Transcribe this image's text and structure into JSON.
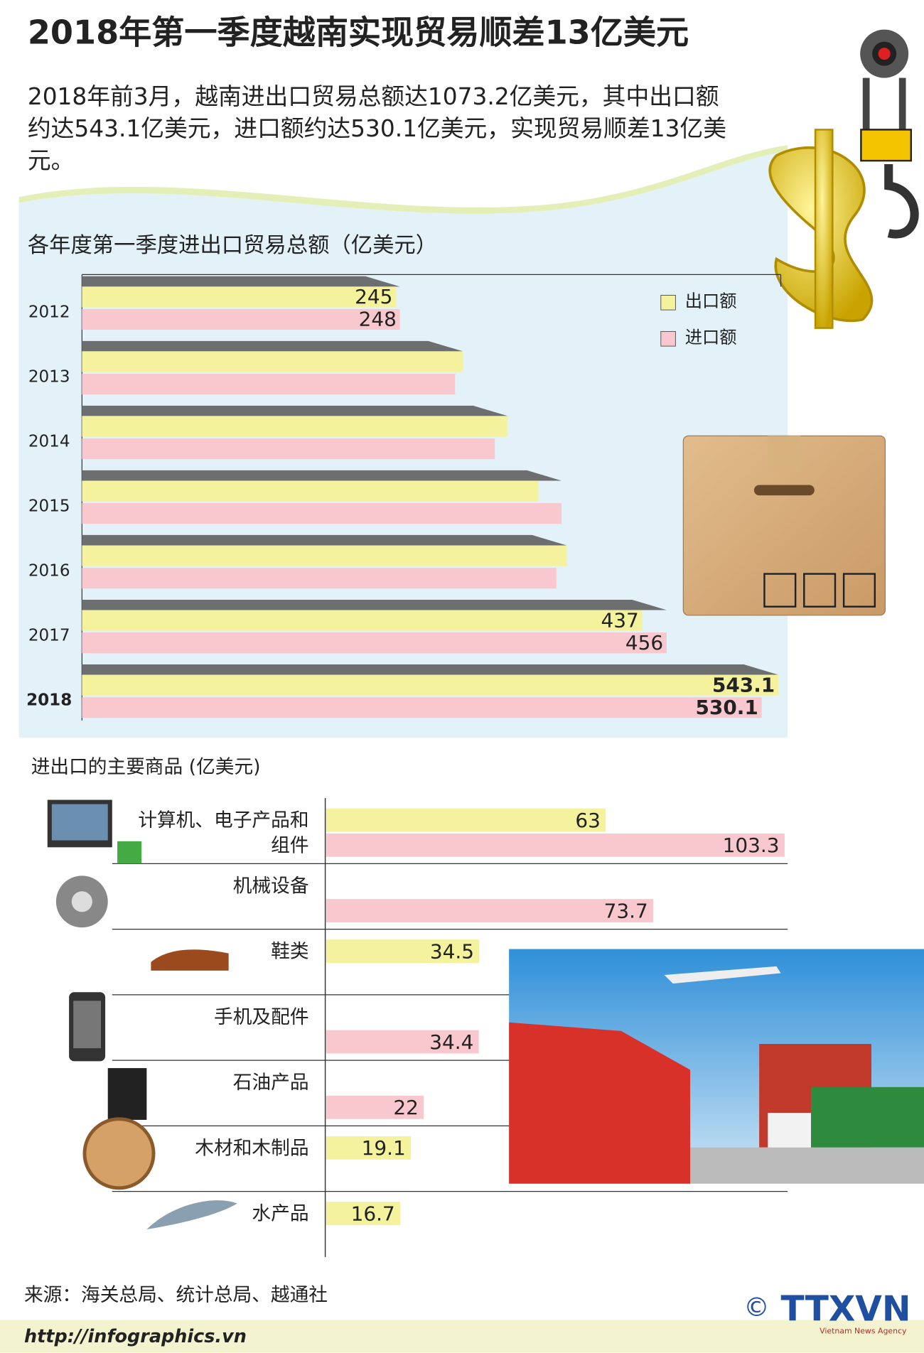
{
  "header": {
    "title": "2018年第一季度越南实现贸易顺差13亿美元",
    "intro": "2018年前3月，越南进出口贸易总额达1073.2亿美元，其中出口额约达543.1亿美元，进口额约达530.1亿美元，实现贸易顺差13亿美元。"
  },
  "chart_data": [
    {
      "type": "bar",
      "title": "各年度第一季度进出口贸易总额（亿美元）",
      "categories": [
        "2012",
        "2013",
        "2014",
        "2015",
        "2016",
        "2017",
        "2018"
      ],
      "series": [
        {
          "name": "出口额",
          "color": "#f4f29c",
          "values": [
            245,
            297,
            332,
            356,
            378,
            437,
            543.1
          ],
          "value_labels": [
            "245",
            null,
            null,
            null,
            null,
            "437",
            "543.1"
          ]
        },
        {
          "name": "进口额",
          "color": "#f8c8ce",
          "values": [
            248,
            291,
            322,
            374,
            370,
            456,
            530.1
          ],
          "value_labels": [
            "248",
            null,
            null,
            null,
            null,
            "456",
            "530.1"
          ]
        }
      ],
      "xlim": [
        0,
        545
      ],
      "legend": "top-right"
    },
    {
      "type": "bar",
      "title": "进出口的主要商品 (亿美元)",
      "categories": [
        "计算机、电子产品和组件",
        "机械设备",
        "鞋类",
        "手机及配件",
        "石油产品",
        "木材和木制品",
        "水产品"
      ],
      "series": [
        {
          "color": "#f4f29c",
          "values": [
            63,
            null,
            34.5,
            null,
            null,
            19.1,
            16.7
          ]
        },
        {
          "color": "#f8c8ce",
          "values": [
            103.3,
            73.7,
            null,
            34.4,
            22,
            null,
            null
          ]
        }
      ],
      "xlim": [
        0,
        104
      ]
    }
  ],
  "footer": {
    "source": "来源：海关总局、统计总局、越通社",
    "url": "http://infographics.vn",
    "logo": "TTXVN",
    "agency": "Vietnam News Agency",
    "copyright": "©"
  }
}
